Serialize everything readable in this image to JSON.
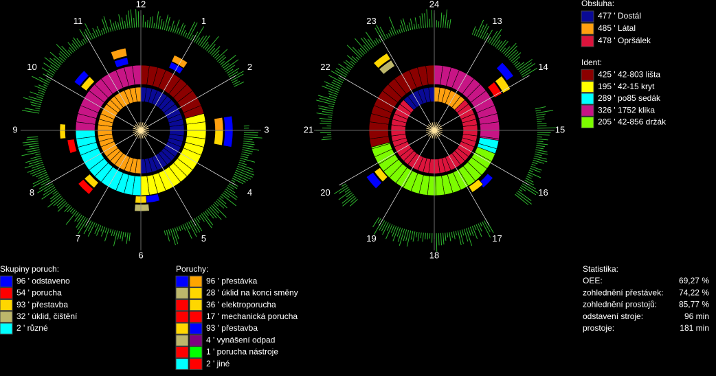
{
  "clock_left": {
    "hours": [
      "12",
      "1",
      "2",
      "3",
      "4",
      "5",
      "6",
      "7",
      "8",
      "9",
      "10",
      "11"
    ]
  },
  "clock_right": {
    "hours": [
      "24",
      "13",
      "14",
      "15",
      "16",
      "17",
      "18",
      "19",
      "20",
      "21",
      "22",
      "23"
    ]
  },
  "obsluha": {
    "title": "Obsluha:",
    "items": [
      {
        "label": "477 ' Dostál",
        "color": "#0a0a96"
      },
      {
        "label": "485 ' Látal",
        "color": "#ffa010"
      },
      {
        "label": "478 ' Opršálek",
        "color": "#dc143c"
      }
    ]
  },
  "ident": {
    "title": "Ident:",
    "items": [
      {
        "label": "425 ' 42-803  lišta",
        "color": "#8b0000"
      },
      {
        "label": "195 ' 42-15  kryt",
        "color": "#ffff00"
      },
      {
        "label": "289 ' po85  sedák",
        "color": "#00ffff"
      },
      {
        "label": "326 ' 1752  klika",
        "color": "#c71585"
      },
      {
        "label": "205 ' 42-856  držák",
        "color": "#7cfc00"
      }
    ]
  },
  "skupiny_poruch": {
    "title": "Skupiny poruch:",
    "items": [
      {
        "label": "96 ' odstaveno",
        "color": "#0000ff"
      },
      {
        "label": "54 ' porucha",
        "color": "#ff0000"
      },
      {
        "label": "93 ' přestavba",
        "color": "#ffd700"
      },
      {
        "label": "32 ' úklid, čištění",
        "color": "#bdb76b"
      },
      {
        "label": "2 ' různé",
        "color": "#00ffff"
      }
    ]
  },
  "poruchy": {
    "title": "Poruchy:",
    "items": [
      {
        "label": "96 ' přestávka",
        "colors": [
          "#0000ff",
          "#ffa500"
        ]
      },
      {
        "label": "28 ' úklid na konci směny",
        "colors": [
          "#bdb76b",
          "#ffd700"
        ]
      },
      {
        "label": "36 ' elektroporucha",
        "colors": [
          "#ff0000",
          "#ffd700"
        ]
      },
      {
        "label": "17 ' mechanická porucha",
        "colors": [
          "#ff0000",
          "#ff0000"
        ]
      },
      {
        "label": "93 ' přestavba",
        "colors": [
          "#ffd700",
          "#0000ff"
        ]
      },
      {
        "label": "4 ' vynášení odpad",
        "colors": [
          "#bdb76b",
          "#800080"
        ]
      },
      {
        "label": "1 ' porucha nástroje",
        "colors": [
          "#ff0000",
          "#00ff00"
        ]
      },
      {
        "label": "2 ' jiné",
        "colors": [
          "#00ffff",
          "#ff0000"
        ]
      }
    ]
  },
  "statistika": {
    "title": "Statistika:",
    "rows": [
      [
        "OEE:",
        "69,27 %"
      ],
      [
        "zohlednění přestávek:",
        "74,22 %"
      ],
      [
        "zohlednění prostojů:",
        "85,77 %"
      ],
      [
        "odstavení stroje:",
        "96 min"
      ],
      [
        "prostoje:",
        "181 min"
      ]
    ]
  }
}
